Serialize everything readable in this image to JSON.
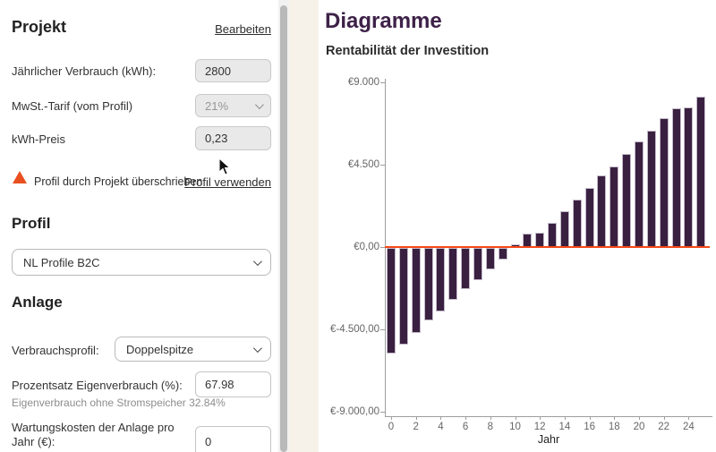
{
  "project": {
    "title": "Projekt",
    "edit_link": "Bearbeiten",
    "fields": [
      {
        "label": "Jährlicher Verbrauch (kWh):",
        "value": "2800"
      },
      {
        "label": "MwSt.-Tarif (vom Profil)",
        "value": "21%"
      },
      {
        "label": "kWh-Preis",
        "value": "0,23"
      }
    ],
    "warning": {
      "text": "Profil durch Projekt überschrieben",
      "link": "Profil verwenden"
    }
  },
  "profile": {
    "title": "Profil",
    "selected": "NL Profile B2C"
  },
  "system": {
    "title": "Anlage",
    "consumption_profile_label": "Verbrauchsprofil:",
    "consumption_profile_value": "Doppelspitze",
    "self_consumption_label": "Prozentsatz Eigenverbrauch (%):",
    "self_consumption_value": "67.98",
    "self_consumption_hint": "Eigenverbrauch ohne Stromspeicher 32.84%",
    "maintenance_label": "Wartungskosten der Anlage pro Jahr (€):",
    "maintenance_value": "0"
  },
  "charts_header": {
    "title": "Diagramme",
    "subtitle": "Rentabilität der Investition"
  },
  "chart_data": {
    "type": "bar",
    "title": "Rentabilität der Investition",
    "xlabel": "Jahr",
    "ylabel": "",
    "x": [
      0,
      1,
      2,
      3,
      4,
      5,
      6,
      7,
      8,
      9,
      10,
      11,
      12,
      13,
      14,
      15,
      16,
      17,
      18,
      19,
      20,
      21,
      22,
      23,
      24,
      25
    ],
    "values": [
      -5750,
      -5270,
      -4660,
      -3980,
      -3490,
      -2860,
      -2250,
      -1740,
      -1150,
      -640,
      150,
      720,
      800,
      1320,
      1960,
      2580,
      3220,
      3890,
      4420,
      5110,
      5760,
      6350,
      7040,
      7600,
      7650,
      8230
    ],
    "x_ticks": [
      0,
      2,
      4,
      6,
      8,
      10,
      12,
      14,
      16,
      18,
      20,
      22,
      24
    ],
    "y_ticks": [
      {
        "value": 9000,
        "label": "€9.000"
      },
      {
        "value": 4500,
        "label": "€4.500"
      },
      {
        "value": 0,
        "label": "€0,00"
      },
      {
        "value": -4500,
        "label": "€-4.500,00"
      },
      {
        "value": -9000,
        "label": "€-9.000,00"
      }
    ],
    "ylim": [
      -9000,
      9000
    ],
    "grid": false,
    "legend": false,
    "bar_color": "#3a2040",
    "zero_line_color": "#f54818"
  },
  "colors": {
    "accent_purple": "#3e2148",
    "warning_orange": "#e8501f",
    "zero_line": "#f54818",
    "bar": "#3a2040"
  }
}
